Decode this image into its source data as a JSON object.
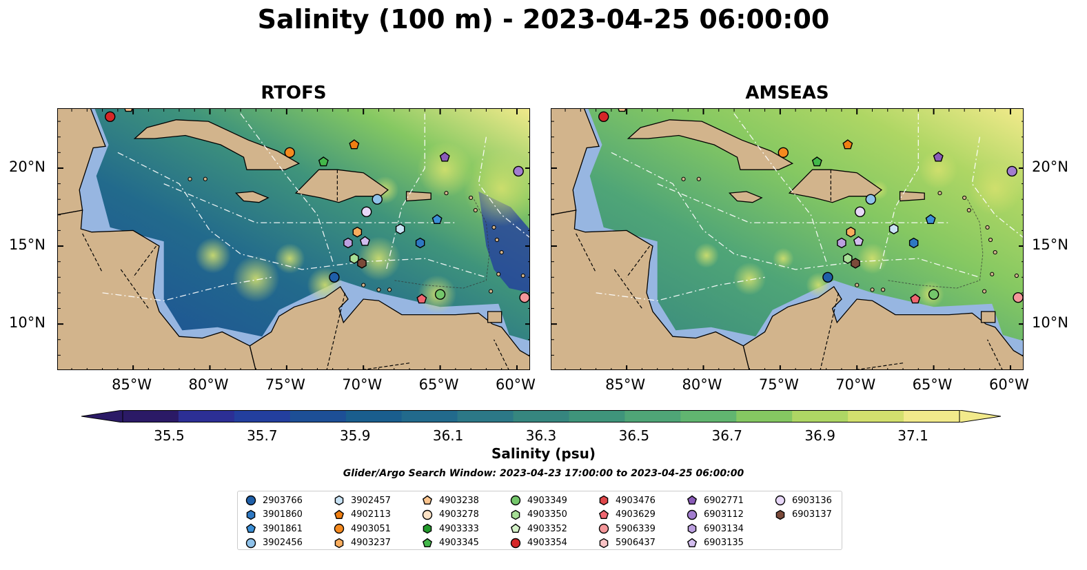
{
  "title": "Salinity (100 m) - 2023-04-25 06:00:00",
  "panels": [
    {
      "title": "RTOFS",
      "model": "rtofs"
    },
    {
      "title": "AMSEAS",
      "model": "amseas"
    }
  ],
  "lon_ticks": [
    "85°W",
    "80°W",
    "75°W",
    "70°W",
    "65°W",
    "60°W"
  ],
  "lat_ticks": [
    "20°N",
    "15°N",
    "10°N"
  ],
  "map_extent": {
    "lon": [
      -89.9,
      -59.1
    ],
    "lat": [
      7.0,
      23.8
    ]
  },
  "colorbar": {
    "label": "Salinity (psu)",
    "ticks": [
      "35.5",
      "35.7",
      "35.9",
      "36.1",
      "36.3",
      "36.5",
      "36.7",
      "36.9",
      "37.1"
    ],
    "range": [
      35.4,
      37.2
    ],
    "colors": [
      "#2b1a66",
      "#2c2f95",
      "#233f9e",
      "#1d4f96",
      "#1a5e8e",
      "#226a8c",
      "#2c7887",
      "#36867f",
      "#3f947b",
      "#4fa577",
      "#61b570",
      "#85c862",
      "#aed664",
      "#d3e06e",
      "#f2ea8b"
    ],
    "extend": "both"
  },
  "search_window": "Glider/Argo Search Window: 2023-04-23 17:00:00 to 2023-04-25 06:00:00",
  "legend": [
    {
      "id": "2903766",
      "marker": "circle",
      "color": "#1f5fa8"
    },
    {
      "id": "3901860",
      "marker": "hexagon",
      "color": "#2e78c2"
    },
    {
      "id": "3901861",
      "marker": "pentagon",
      "color": "#3b8fd6"
    },
    {
      "id": "3902456",
      "marker": "circle",
      "color": "#8fc2ea"
    },
    {
      "id": "3902457",
      "marker": "hexagon",
      "color": "#c9e3f5"
    },
    {
      "id": "4902113",
      "marker": "pentagon",
      "color": "#f07f12"
    },
    {
      "id": "4903051",
      "marker": "circle",
      "color": "#f58a1f"
    },
    {
      "id": "4903237",
      "marker": "hexagon",
      "color": "#f9ad5e"
    },
    {
      "id": "4903238",
      "marker": "pentagon",
      "color": "#fbc58f"
    },
    {
      "id": "4903278",
      "marker": "circle",
      "color": "#fde3c6"
    },
    {
      "id": "4903333",
      "marker": "hexagon",
      "color": "#239a2c"
    },
    {
      "id": "4903345",
      "marker": "pentagon",
      "color": "#43b84a"
    },
    {
      "id": "4903349",
      "marker": "circle",
      "color": "#74c76b"
    },
    {
      "id": "4903350",
      "marker": "hexagon",
      "color": "#a6df96"
    },
    {
      "id": "4903352",
      "marker": "pentagon",
      "color": "#d4f2c8"
    },
    {
      "id": "4903354",
      "marker": "circle",
      "color": "#d62728"
    },
    {
      "id": "4903476",
      "marker": "hexagon",
      "color": "#e0474a"
    },
    {
      "id": "4903629",
      "marker": "pentagon",
      "color": "#ef6670"
    },
    {
      "id": "5906339",
      "marker": "circle",
      "color": "#f4979a"
    },
    {
      "id": "5906437",
      "marker": "hexagon",
      "color": "#f9c2c4"
    },
    {
      "id": "6902771",
      "marker": "pentagon",
      "color": "#8a5cb8"
    },
    {
      "id": "6903112",
      "marker": "circle",
      "color": "#a27dcf"
    },
    {
      "id": "6903134",
      "marker": "hexagon",
      "color": "#bca0e0"
    },
    {
      "id": "6903135",
      "marker": "pentagon",
      "color": "#d2bdee"
    },
    {
      "id": "6903136",
      "marker": "circle",
      "color": "#e8d8f8"
    },
    {
      "id": "6903137",
      "marker": "hexagon",
      "color": "#7b4a3a"
    }
  ],
  "observations": [
    {
      "id": "4903354",
      "lon": -86.5,
      "lat": 23.3
    },
    {
      "id": "4903238",
      "lon": -85.3,
      "lat": 23.9
    },
    {
      "id": "4903051",
      "lon": -74.8,
      "lat": 21.0
    },
    {
      "id": "4902113",
      "lon": -70.6,
      "lat": 21.5
    },
    {
      "id": "4903345",
      "lon": -72.6,
      "lat": 20.4
    },
    {
      "id": "6902771",
      "lon": -64.7,
      "lat": 20.7
    },
    {
      "id": "6903112",
      "lon": -59.9,
      "lat": 19.8
    },
    {
      "id": "3902456",
      "lon": -69.1,
      "lat": 18.0
    },
    {
      "id": "6903136",
      "lon": -69.8,
      "lat": 17.2
    },
    {
      "id": "3902457",
      "lon": -67.6,
      "lat": 16.1
    },
    {
      "id": "3901861",
      "lon": -65.2,
      "lat": 16.7
    },
    {
      "id": "4903237",
      "lon": -70.4,
      "lat": 15.9
    },
    {
      "id": "3901860",
      "lon": -66.3,
      "lat": 15.2
    },
    {
      "id": "6903134",
      "lon": -71.0,
      "lat": 15.2
    },
    {
      "id": "6903135",
      "lon": -69.9,
      "lat": 15.3
    },
    {
      "id": "4903350",
      "lon": -70.6,
      "lat": 14.2
    },
    {
      "id": "6903137",
      "lon": -70.1,
      "lat": 13.9
    },
    {
      "id": "2903766",
      "lon": -71.9,
      "lat": 13.0
    },
    {
      "id": "4903349",
      "lon": -65.0,
      "lat": 11.9
    },
    {
      "id": "4903629",
      "lon": -66.2,
      "lat": 11.6
    },
    {
      "id": "5906339",
      "lon": -59.5,
      "lat": 11.7
    }
  ]
}
